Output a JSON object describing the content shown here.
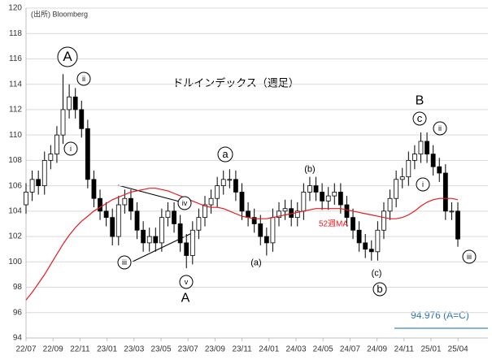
{
  "chart_data": {
    "type": "candlestick",
    "title": "ドルインデックス（週足）",
    "source": "(出所) Bloomberg",
    "ylim": [
      94,
      120
    ],
    "yticks": [
      94,
      96,
      98,
      100,
      102,
      104,
      106,
      108,
      110,
      112,
      114,
      116,
      118,
      120
    ],
    "xtick_labels": [
      "22/07",
      "22/09",
      "22/11",
      "23/01",
      "23/03",
      "23/05",
      "23/07",
      "23/09",
      "23/11",
      "24/01",
      "24/03",
      "24/05",
      "24/07",
      "24/09",
      "24/11",
      "25/01",
      "25/04"
    ],
    "grid": true,
    "up_color": "#ffffff",
    "down_color": "#000000",
    "open": [
      104.5,
      105.5,
      106.5,
      106,
      108,
      108.5,
      110,
      112,
      113,
      112,
      110.5,
      106.5,
      105,
      104,
      103.5,
      102,
      104.5,
      105,
      104,
      102.5,
      101.5,
      102,
      101.5,
      103.5,
      104,
      103,
      101.5,
      100.5,
      102.5,
      103.5,
      104.5,
      105,
      106,
      106.5,
      106.5,
      105.5,
      104,
      103.5,
      103,
      102,
      101.5,
      103.5,
      104,
      104.2,
      103.5,
      104,
      105.5,
      106,
      105.5,
      104.8,
      105.2,
      105.5,
      104.5,
      103.5,
      102.5,
      101.5,
      101,
      100.8,
      102.5,
      104,
      105,
      106.5,
      106.7,
      108,
      108.5,
      109.5,
      108.5,
      107.5,
      107,
      104,
      104
    ],
    "high": [
      106.2,
      107.2,
      107.2,
      108.7,
      109.2,
      110.7,
      114.8,
      114,
      113.7,
      112.7,
      111.2,
      107.2,
      105.7,
      104.7,
      104.2,
      105.2,
      105.7,
      105.7,
      104.7,
      103.2,
      102.7,
      102.7,
      104.2,
      104.7,
      104.7,
      103.7,
      102.2,
      103.2,
      104.2,
      105.2,
      105.7,
      106.7,
      107.2,
      107.3,
      107.2,
      106.2,
      104.7,
      104.2,
      103.7,
      102.7,
      104.2,
      104.7,
      104.9,
      104.9,
      104.7,
      106.2,
      106.7,
      106.7,
      106.2,
      105.9,
      106.2,
      106.2,
      105.2,
      104.2,
      103.2,
      102.2,
      101.7,
      103.2,
      104.7,
      105.7,
      107.2,
      107.4,
      108.7,
      109.2,
      110.2,
      110.2,
      109.2,
      108.2,
      107.7,
      104.7,
      104.7
    ],
    "low": [
      103.8,
      104.8,
      105.3,
      105.3,
      107.3,
      107.8,
      109.3,
      111.3,
      111.3,
      109.8,
      105.8,
      104.3,
      103.3,
      102.8,
      101.3,
      101.3,
      103.8,
      103.3,
      101.8,
      100.8,
      100.8,
      100.8,
      100.8,
      102.8,
      102.3,
      100.8,
      99.5,
      99.8,
      101.8,
      102.8,
      103.8,
      104.3,
      105.3,
      105.8,
      104.8,
      103.3,
      102.8,
      102.3,
      101.3,
      100.5,
      100.8,
      102.8,
      103.3,
      102.8,
      102.8,
      103.3,
      104.8,
      104.8,
      104.1,
      104.1,
      104.5,
      103.8,
      102.8,
      101.8,
      100.8,
      100.3,
      100.1,
      100.1,
      101.8,
      103.3,
      104.3,
      105.8,
      106,
      107.3,
      107.8,
      107.8,
      106.8,
      106.3,
      103.3,
      103.3,
      101.2
    ],
    "close": [
      105.5,
      106.5,
      106,
      108,
      108.5,
      110,
      112,
      113,
      112,
      110.5,
      106.5,
      105,
      104,
      103.5,
      102,
      104.5,
      105,
      104,
      102.5,
      101.5,
      102,
      101.5,
      103.5,
      104,
      103,
      101.5,
      100.5,
      102.5,
      103.5,
      104.5,
      105,
      106,
      106.5,
      106.5,
      105.5,
      104,
      103.5,
      103,
      102,
      101.5,
      103.5,
      104,
      104.2,
      103.5,
      104,
      105.5,
      106,
      105.5,
      104.8,
      105.2,
      105.5,
      104.5,
      103.5,
      102.5,
      101.5,
      101,
      100.8,
      102.5,
      104,
      105,
      106.5,
      106.7,
      108,
      108.5,
      109.5,
      108.5,
      107.5,
      107,
      104,
      104,
      101.8
    ],
    "ma": {
      "name": "52週MA",
      "color": "#e8191f",
      "values": [
        97,
        97.6,
        98.3,
        99,
        99.8,
        100.6,
        101.4,
        102.1,
        102.7,
        103.2,
        103.6,
        104,
        104.3,
        104.6,
        104.9,
        105.1,
        105.3,
        105.5,
        105.6,
        105.7,
        105.8,
        105.8,
        105.7,
        105.6,
        105.4,
        105.2,
        105,
        104.8,
        104.6,
        104.4,
        104.3,
        104.3,
        104.2,
        104,
        103.8,
        103.6,
        103.5,
        103.4,
        103.4,
        103.4,
        103.5,
        103.6,
        103.7,
        103.8,
        103.9,
        104,
        104.1,
        104.2,
        104.2,
        104.2,
        104.2,
        104.2,
        104.1,
        104,
        103.9,
        103.8,
        103.7,
        103.6,
        103.5,
        103.4,
        103.4,
        103.5,
        103.7,
        104,
        104.4,
        104.7,
        104.9,
        105,
        105,
        105,
        104.9
      ]
    },
    "annotations": [
      "A",
      "ii",
      "i",
      "iii",
      "iv",
      "v",
      "A",
      "a",
      "(a)",
      "(b)",
      "(c)",
      "b",
      "B",
      "c",
      "ii",
      "i",
      "iii"
    ],
    "target_label": "94.976 (A=C)"
  }
}
